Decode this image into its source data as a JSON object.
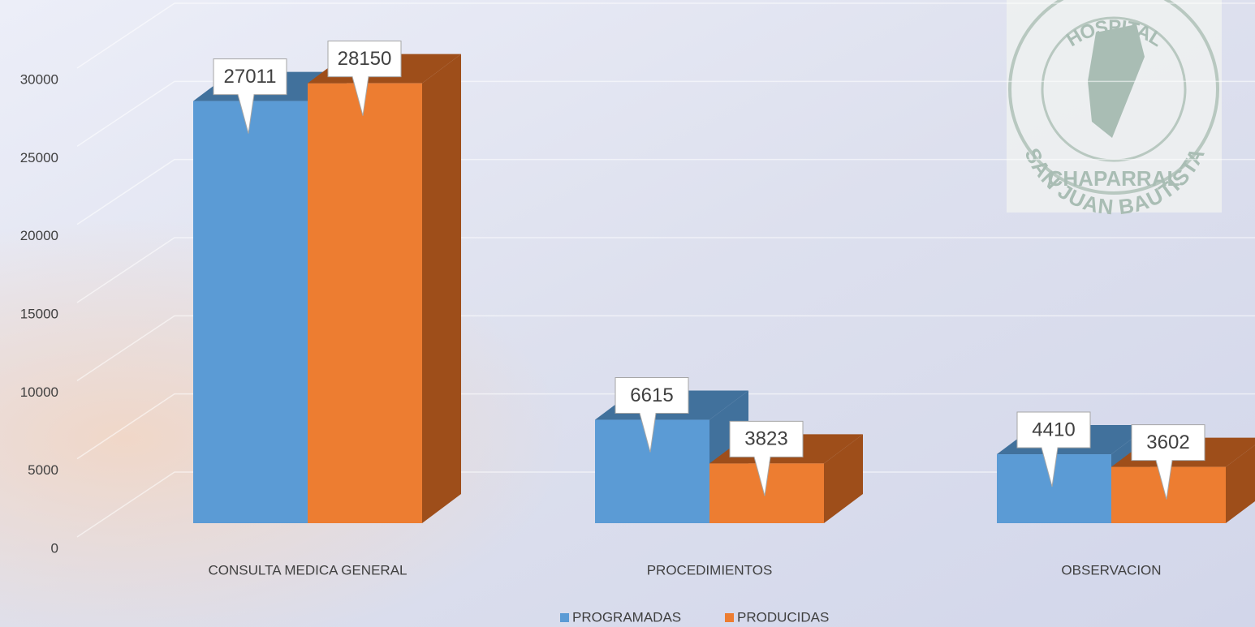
{
  "chart_data": {
    "type": "bar3d",
    "categories": [
      "CONSULTA MEDICA GENERAL",
      "PROCEDIMIENTOS",
      "OBSERVACION"
    ],
    "series": [
      {
        "name": "PROGRAMADAS",
        "color": "#5b9bd5",
        "side": "#41719c",
        "values": [
          27011,
          6615,
          4410
        ]
      },
      {
        "name": "PRODUCIDAS",
        "color": "#ed7d31",
        "side": "#9e4e1a",
        "values": [
          28150,
          3823,
          3602
        ]
      }
    ],
    "ylim": [
      0,
      30000
    ],
    "yticks": [
      0,
      5000,
      10000,
      15000,
      20000,
      25000,
      30000
    ],
    "grid": true,
    "legend": "bottom"
  },
  "logo": {
    "top": "HOSPITAL",
    "middle": "SAN JUAN BAUTISTA",
    "bottom": "CHAPARRAL"
  }
}
